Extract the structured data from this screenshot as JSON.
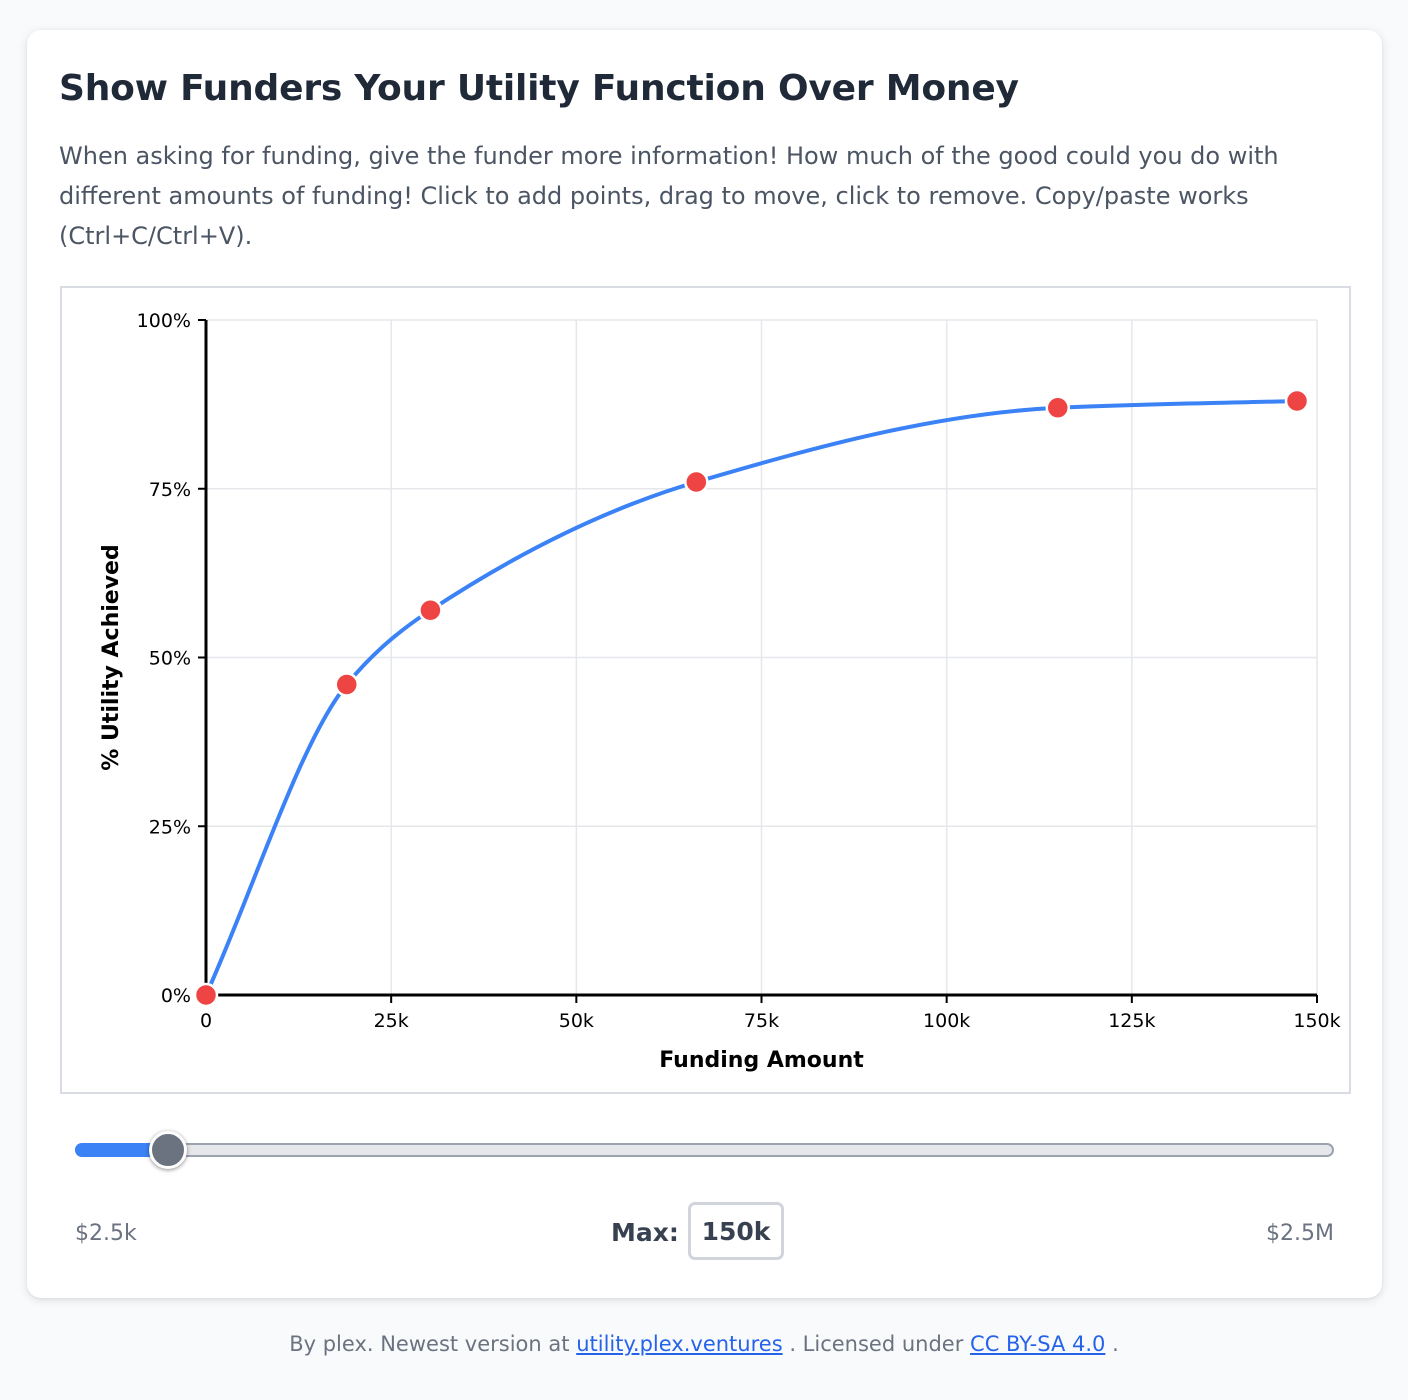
{
  "title": "Show Funders Your Utility Function Over Money",
  "description": "When asking for funding, give the funder more information! How much of the good could you do with different amounts of funding! Click to add points, drag to move, click to remove. Copy/paste works (Ctrl+C/Ctrl+V).",
  "chart_data": {
    "type": "line",
    "xlabel": "Funding Amount",
    "ylabel": "% Utility Achieved",
    "xlim": [
      0,
      150000
    ],
    "ylim": [
      0,
      100
    ],
    "x_ticks": [
      0,
      25000,
      50000,
      75000,
      100000,
      125000,
      150000
    ],
    "x_tick_labels": [
      "0",
      "25k",
      "50k",
      "75k",
      "100k",
      "125k",
      "150k"
    ],
    "y_ticks": [
      0,
      25,
      50,
      75,
      100
    ],
    "y_tick_labels": [
      "0%",
      "25%",
      "50%",
      "75%",
      "100%"
    ],
    "grid": true,
    "curve": "smooth",
    "line_color": "#3b82f6",
    "point_color": "#ef4444",
    "points": [
      {
        "x": 0,
        "y": 0
      },
      {
        "x": 19000,
        "y": 46
      },
      {
        "x": 30300,
        "y": 57
      },
      {
        "x": 66200,
        "y": 76
      },
      {
        "x": 115000,
        "y": 87
      },
      {
        "x": 147300,
        "y": 88
      }
    ]
  },
  "slider": {
    "fraction": 0.073,
    "min_label": "$2.5k",
    "max_label": "$2.5M",
    "fill_color": "#3b82f6"
  },
  "max_control": {
    "label": "Max:",
    "value": "150k"
  },
  "footer": {
    "prefix": "By plex. Newest version at",
    "link1": "utility.plex.ventures",
    "middle": ". Licensed under",
    "link2": "CC BY-SA 4.0",
    "suffix": "."
  }
}
